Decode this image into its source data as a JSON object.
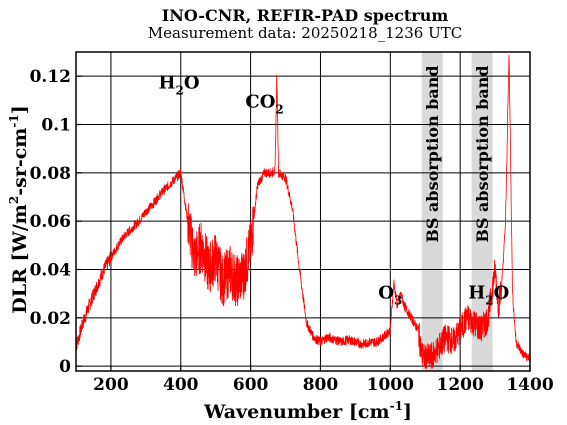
{
  "chart_data": {
    "type": "line",
    "title": "INO-CNR, REFIR-PAD spectrum",
    "subtitle": "Measurement data: 20250218_1236 UTC",
    "xlabel": "Wavenumber [cm^-1]",
    "ylabel": "DLR [W/m^2-sr-cm^-1]",
    "xlim": [
      100,
      1400
    ],
    "ylim": [
      -0.002,
      0.13
    ],
    "xticks": [
      "200",
      "400",
      "600",
      "800",
      "1000",
      "1200",
      "1400"
    ],
    "xtick_values": [
      200,
      400,
      600,
      800,
      1000,
      1200,
      1400
    ],
    "yticks": [
      "0",
      "0.02",
      "0.04",
      "0.06",
      "0.08",
      "0.1",
      "0.12"
    ],
    "ytick_values": [
      0,
      0.02,
      0.04,
      0.06,
      0.08,
      0.1,
      0.12
    ],
    "grid": true,
    "line_color": "#ff0000",
    "band_color": "#d9d9d9",
    "series": [
      {
        "x": [
          100,
          120,
          140,
          160,
          180,
          200,
          220,
          240,
          260,
          280,
          300,
          320,
          340,
          360,
          380,
          400,
          420,
          440,
          460,
          480,
          500,
          520,
          540,
          560,
          580,
          600,
          620,
          640,
          660,
          670,
          675,
          680,
          700,
          720,
          740,
          760,
          780,
          800,
          820,
          840,
          860,
          880,
          900,
          920,
          940,
          960,
          980,
          1000,
          1010,
          1020,
          1030,
          1040,
          1060,
          1080,
          1090,
          1100,
          1120,
          1140,
          1160,
          1180,
          1200,
          1220,
          1240,
          1260,
          1280,
          1300,
          1310,
          1320,
          1330,
          1340,
          1350,
          1360,
          1380,
          1400
        ],
        "values": [
          0.008,
          0.018,
          0.026,
          0.033,
          0.04,
          0.045,
          0.05,
          0.054,
          0.057,
          0.06,
          0.064,
          0.067,
          0.071,
          0.074,
          0.077,
          0.08,
          0.06,
          0.045,
          0.05,
          0.04,
          0.045,
          0.035,
          0.04,
          0.035,
          0.038,
          0.05,
          0.075,
          0.08,
          0.08,
          0.081,
          0.12,
          0.08,
          0.078,
          0.065,
          0.04,
          0.018,
          0.012,
          0.01,
          0.012,
          0.011,
          0.01,
          0.011,
          0.01,
          0.009,
          0.01,
          0.01,
          0.012,
          0.015,
          0.035,
          0.025,
          0.03,
          0.025,
          0.02,
          0.015,
          0.005,
          0.003,
          0.004,
          0.008,
          0.012,
          0.01,
          0.015,
          0.02,
          0.018,
          0.015,
          0.02,
          0.04,
          0.025,
          0.035,
          0.06,
          0.13,
          0.03,
          0.01,
          0.005,
          0.003
        ]
      }
    ],
    "bands": [
      {
        "label": "BS absorption band",
        "x_start": 1090,
        "x_end": 1150
      },
      {
        "label": "BS absorption band",
        "x_start": 1233,
        "x_end": 1293
      }
    ],
    "annotations": [
      {
        "text": "H",
        "sub": "2",
        "rest": "O",
        "x": 395,
        "y": 0.115
      },
      {
        "text": "CO",
        "sub": "2",
        "rest": "",
        "x": 640,
        "y": 0.107
      },
      {
        "text": "O",
        "sub": "3",
        "rest": "",
        "x": 1000,
        "y": 0.028
      },
      {
        "text": "H",
        "sub": "2",
        "rest": "O",
        "x": 1282,
        "y": 0.028
      }
    ]
  }
}
